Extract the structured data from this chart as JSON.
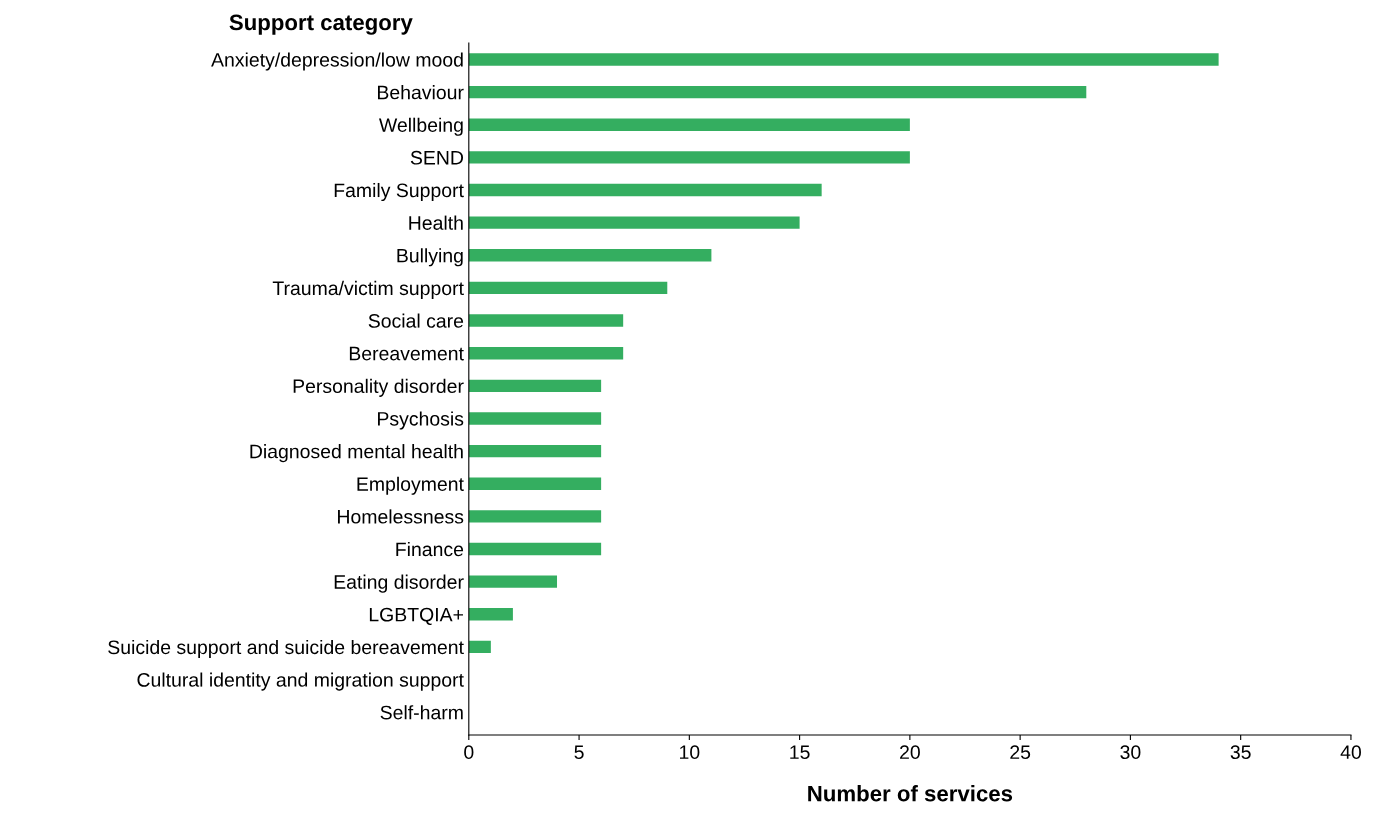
{
  "chart_data": {
    "type": "bar",
    "orientation": "horizontal",
    "ylabel": "Support category",
    "xlabel": "Number of services",
    "categories": [
      "Anxiety/depression/low mood",
      "Behaviour",
      "Wellbeing",
      "SEND",
      "Family Support",
      "Health",
      "Bullying",
      "Trauma/victim support",
      "Social care",
      "Bereavement",
      "Personality disorder",
      "Psychosis",
      "Diagnosed mental health",
      "Employment",
      "Homelessness",
      "Finance",
      "Eating disorder",
      "LGBTQIA+",
      "Suicide support and suicide bereavement",
      "Cultural identity and migration support",
      "Self-harm"
    ],
    "values": [
      34,
      28,
      20,
      20,
      16,
      15,
      11,
      9,
      7,
      7,
      6,
      6,
      6,
      6,
      6,
      6,
      4,
      2,
      1,
      0,
      0
    ],
    "color": "#34ae60",
    "xlim": [
      0,
      40
    ],
    "xticks": [
      0,
      5,
      10,
      15,
      20,
      25,
      30,
      35,
      40
    ],
    "grid": false,
    "legend": false
  }
}
